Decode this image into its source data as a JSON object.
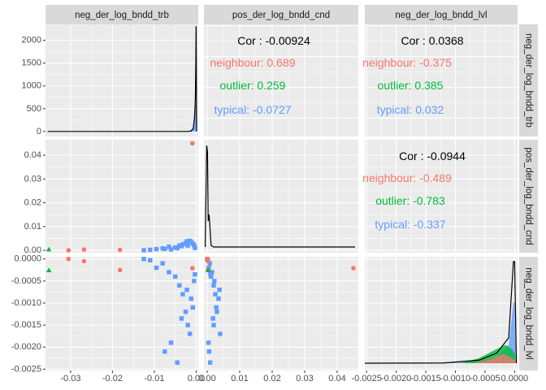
{
  "colors": {
    "neighbour": "#F8766D",
    "outlier": "#00BA38",
    "typical": "#619CFF",
    "panel": "#ebebeb",
    "strip": "#d9d9d9"
  },
  "chart_data": {
    "type": "scatter",
    "title": "",
    "variables": [
      "neg_der_log_bndd_trb",
      "pos_der_log_bndd_cnd",
      "neg_der_log_bndd_lvl"
    ],
    "groups": [
      "neighbour",
      "outlier",
      "typical"
    ],
    "axes": {
      "neg_der_log_bndd_trb": {
        "range": [
          -0.036,
          0.0005
        ],
        "ticks": [
          -0.03,
          -0.02,
          -0.01,
          0.0
        ],
        "tick_labels": [
          "-0.03",
          "-0.02",
          "-0.01",
          "0.00"
        ]
      },
      "pos_der_log_bndd_cnd": {
        "range": [
          -0.001,
          0.0465
        ],
        "ticks": [
          0.0,
          0.01,
          0.02,
          0.03,
          0.04
        ],
        "tick_labels": [
          "0.00",
          "0.01",
          "0.02",
          "0.03",
          "0.04"
        ]
      },
      "neg_der_log_bndd_lvl": {
        "range": [
          -0.00253,
          5e-05
        ],
        "ticks": [
          -0.0025,
          -0.002,
          -0.0015,
          -0.001,
          -0.0005,
          0.0
        ],
        "x_tick_labels": [
          "-0.0025",
          "-0.0020",
          "-0.0015",
          "-0.0010",
          "-0.0005",
          "0.0000"
        ],
        "y_tick_labels": [
          "-0.0025",
          "-0.0020",
          "-0.0015",
          "-0.0010",
          "-0.0005",
          "0.0000"
        ]
      },
      "density_trb_y": {
        "range": [
          -110,
          2350
        ],
        "ticks": [
          0,
          500,
          1000,
          1500,
          2000
        ],
        "tick_labels": [
          "0",
          "500",
          "1000",
          "1500",
          "2000"
        ]
      }
    },
    "correlations": [
      {
        "pair": [
          "neg_der_log_bndd_trb",
          "pos_der_log_bndd_cnd"
        ],
        "overall": "Cor : -0.00924",
        "by_group": [
          {
            "group": "neighbour",
            "text": "neighbour: 0.689"
          },
          {
            "group": "outlier",
            "text": "outlier: 0.259"
          },
          {
            "group": "typical",
            "text": "typical: -0.0727"
          }
        ]
      },
      {
        "pair": [
          "neg_der_log_bndd_trb",
          "neg_der_log_bndd_lvl"
        ],
        "overall": "Cor : 0.0368",
        "by_group": [
          {
            "group": "neighbour",
            "text": "neighbour: -0.375"
          },
          {
            "group": "outlier",
            "text": "outlier: 0.385"
          },
          {
            "group": "typical",
            "text": "typical: 0.032"
          }
        ]
      },
      {
        "pair": [
          "pos_der_log_bndd_cnd",
          "neg_der_log_bndd_lvl"
        ],
        "overall": "Cor : -0.0944",
        "by_group": [
          {
            "group": "neighbour",
            "text": "neighbour: -0.489"
          },
          {
            "group": "outlier",
            "text": "outlier: -0.783"
          },
          {
            "group": "typical",
            "text": "typical: -0.337"
          }
        ]
      }
    ],
    "scatter_points": {
      "neighbour": [
        {
          "trb": -0.0009,
          "cnd": 0.045,
          "lvl": -0.00021
        },
        {
          "trb": -0.0305,
          "cnd": 0.0,
          "lvl": 0.0
        },
        {
          "trb": -0.0268,
          "cnd": 0.0003,
          "lvl": -5e-05
        },
        {
          "trb": -0.0182,
          "cnd": 0.0002,
          "lvl": -0.00025
        }
      ],
      "outlier": [
        {
          "trb": -0.0352,
          "cnd": 0.0003,
          "lvl": -0.00026
        }
      ],
      "typical": [
        {
          "trb": -0.0125,
          "cnd": 0.0,
          "lvl": 0.0
        },
        {
          "trb": -0.011,
          "cnd": 0.0002,
          "lvl": -3e-05
        },
        {
          "trb": -0.0095,
          "cnd": 0.0005,
          "lvl": -0.0002
        },
        {
          "trb": -0.008,
          "cnd": 0.0008,
          "lvl": -0.0001
        },
        {
          "trb": -0.0065,
          "cnd": 0.0015,
          "lvl": -0.0003
        },
        {
          "trb": -0.005,
          "cnd": 0.0012,
          "lvl": -0.0004
        },
        {
          "trb": -0.004,
          "cnd": 0.002,
          "lvl": -0.0006
        },
        {
          "trb": -0.0032,
          "cnd": 0.0025,
          "lvl": -0.0008
        },
        {
          "trb": -0.0025,
          "cnd": 0.003,
          "lvl": -0.0012
        },
        {
          "trb": -0.002,
          "cnd": 0.002,
          "lvl": -0.0015
        },
        {
          "trb": -0.0015,
          "cnd": 0.004,
          "lvl": -0.0017
        },
        {
          "trb": -0.0012,
          "cnd": 0.0035,
          "lvl": -0.0009
        },
        {
          "trb": -0.0008,
          "cnd": 0.0028,
          "lvl": -0.0011
        },
        {
          "trb": -0.0005,
          "cnd": 0.0022,
          "lvl": -0.0005
        },
        {
          "trb": -0.0003,
          "cnd": 0.001,
          "lvl": -0.00035
        },
        {
          "trb": -0.0075,
          "cnd": 0.0006,
          "lvl": -0.0021
        },
        {
          "trb": -0.0045,
          "cnd": 0.0009,
          "lvl": -0.00235
        },
        {
          "trb": -0.006,
          "cnd": 0.0004,
          "lvl": -0.0019
        },
        {
          "trb": -0.0035,
          "cnd": 0.0018,
          "lvl": -0.00135
        },
        {
          "trb": -0.0022,
          "cnd": 0.0038,
          "lvl": -0.0007
        }
      ]
    }
  }
}
